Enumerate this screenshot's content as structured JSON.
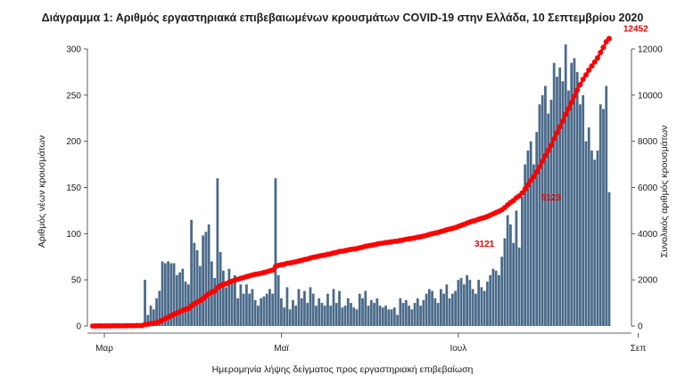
{
  "chart_data": {
    "type": "bar",
    "title": "Διάγραμμα 1: Αριθμός εργαστηριακά επιβεβαιωμένων κρουσμάτων COVID-19 στην Ελλάδα, 10 Σεπτεμβρίου 2020",
    "xlabel": "Ημερομηνία λήψης δείγματος προς εργαστηριακή επιβεβαίωση",
    "ylabel_left": "Αριθμός νέων κρουσμάτων",
    "ylabel_right": "Συνολικός αριθμός κρουσμάτων",
    "ylim_left": [
      0,
      300
    ],
    "ylim_right": [
      0,
      12000
    ],
    "yticks_left": [
      0,
      50,
      100,
      150,
      200,
      250,
      300
    ],
    "yticks_right": [
      0,
      2000,
      4000,
      6000,
      8000,
      10000,
      12000
    ],
    "x_tick_labels": [
      {
        "day": 4,
        "label": "Μαρ"
      },
      {
        "day": 65,
        "label": "Μαϊ"
      },
      {
        "day": 126,
        "label": "Ιουλ"
      },
      {
        "day": 188,
        "label": "Σεπ"
      }
    ],
    "start_date": "2020-02-26",
    "daily_new_cases": [
      1,
      1,
      1,
      1,
      1,
      1,
      1,
      1,
      1,
      1,
      1,
      1,
      1,
      2,
      2,
      1,
      1,
      2,
      50,
      12,
      22,
      18,
      30,
      38,
      70,
      68,
      70,
      68,
      68,
      55,
      58,
      62,
      48,
      45,
      115,
      90,
      82,
      65,
      98,
      102,
      110,
      70,
      52,
      160,
      80,
      60,
      42,
      62,
      48,
      55,
      30,
      45,
      35,
      45,
      35,
      40,
      28,
      22,
      30,
      32,
      35,
      40,
      35,
      160,
      55,
      30,
      20,
      42,
      18,
      28,
      22,
      40,
      30,
      38,
      25,
      42,
      35,
      22,
      30,
      25,
      22,
      35,
      22,
      40,
      25,
      38,
      20,
      22,
      30,
      25,
      20,
      18,
      35,
      30,
      38,
      22,
      28,
      25,
      30,
      22,
      20,
      22,
      18,
      18,
      20,
      12,
      30,
      25,
      28,
      22,
      18,
      25,
      30,
      22,
      28,
      35,
      40,
      38,
      30,
      25,
      40,
      35,
      45,
      30,
      35,
      38,
      50,
      52,
      45,
      55,
      50,
      40,
      35,
      50,
      42,
      38,
      48,
      55,
      62,
      60,
      55,
      75,
      95,
      120,
      110,
      90,
      125,
      85,
      140,
      175,
      190,
      200,
      175,
      210,
      240,
      250,
      260,
      230,
      245,
      285,
      270,
      280,
      265,
      305,
      255,
      285,
      290,
      275,
      240,
      250,
      200,
      215,
      190,
      180,
      190,
      240,
      235,
      260,
      145
    ],
    "cumulative_series_name": "Συνολικός αριθμός κρουσμάτων",
    "cumulative_final": 12452,
    "annotations": [
      {
        "text": "3121",
        "day": 135,
        "value": 3121
      },
      {
        "text": "5123",
        "day": 158,
        "value": 5123
      },
      {
        "text": "12452",
        "day": 189,
        "value": 12452
      }
    ],
    "colors": {
      "bars": "#4a6a8a",
      "cumulative": "#ff0000",
      "annotation": "#e60000"
    }
  }
}
